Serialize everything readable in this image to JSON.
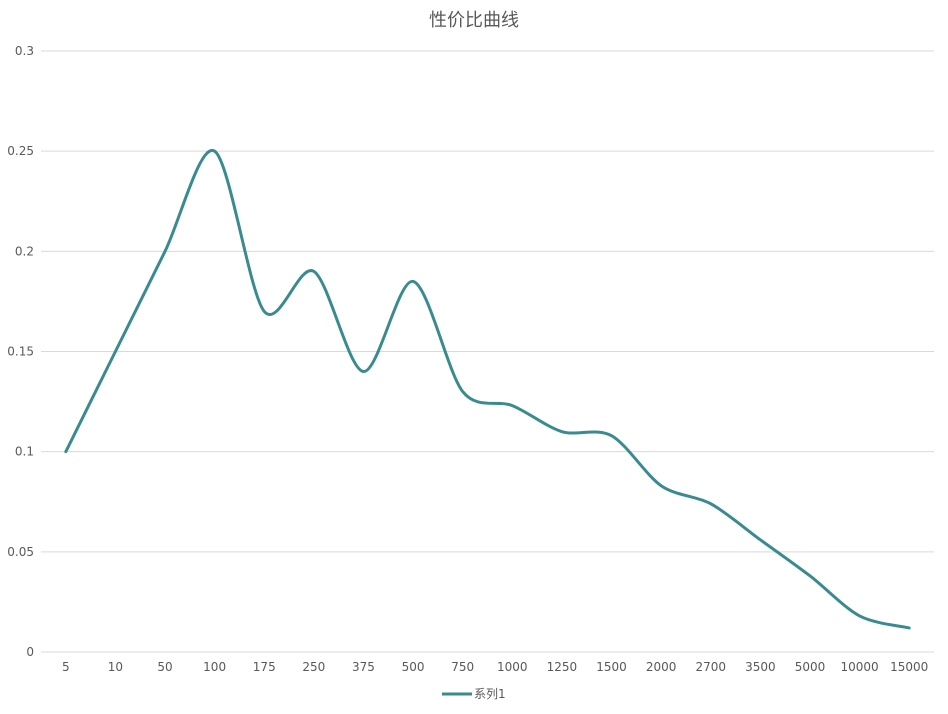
{
  "chart_data": {
    "type": "line",
    "title": "性价比曲线",
    "categories": [
      "5",
      "10",
      "50",
      "100",
      "175",
      "250",
      "375",
      "500",
      "750",
      "1000",
      "1250",
      "1500",
      "2000",
      "2700",
      "3500",
      "5000",
      "10000",
      "15000"
    ],
    "series": [
      {
        "name": "系列1",
        "color": "#3a8b8f",
        "values": [
          0.1,
          0.15,
          0.2,
          0.25,
          0.17,
          0.19,
          0.14,
          0.185,
          0.13,
          0.123,
          0.11,
          0.108,
          0.083,
          0.074,
          0.056,
          0.038,
          0.018,
          0.012
        ]
      }
    ],
    "ylim": [
      0,
      0.3
    ],
    "yticks": [
      "0",
      "0.05",
      "0.1",
      "0.15",
      "0.2",
      "0.25",
      "0.3"
    ],
    "grid": true,
    "legend_position": "bottom"
  }
}
